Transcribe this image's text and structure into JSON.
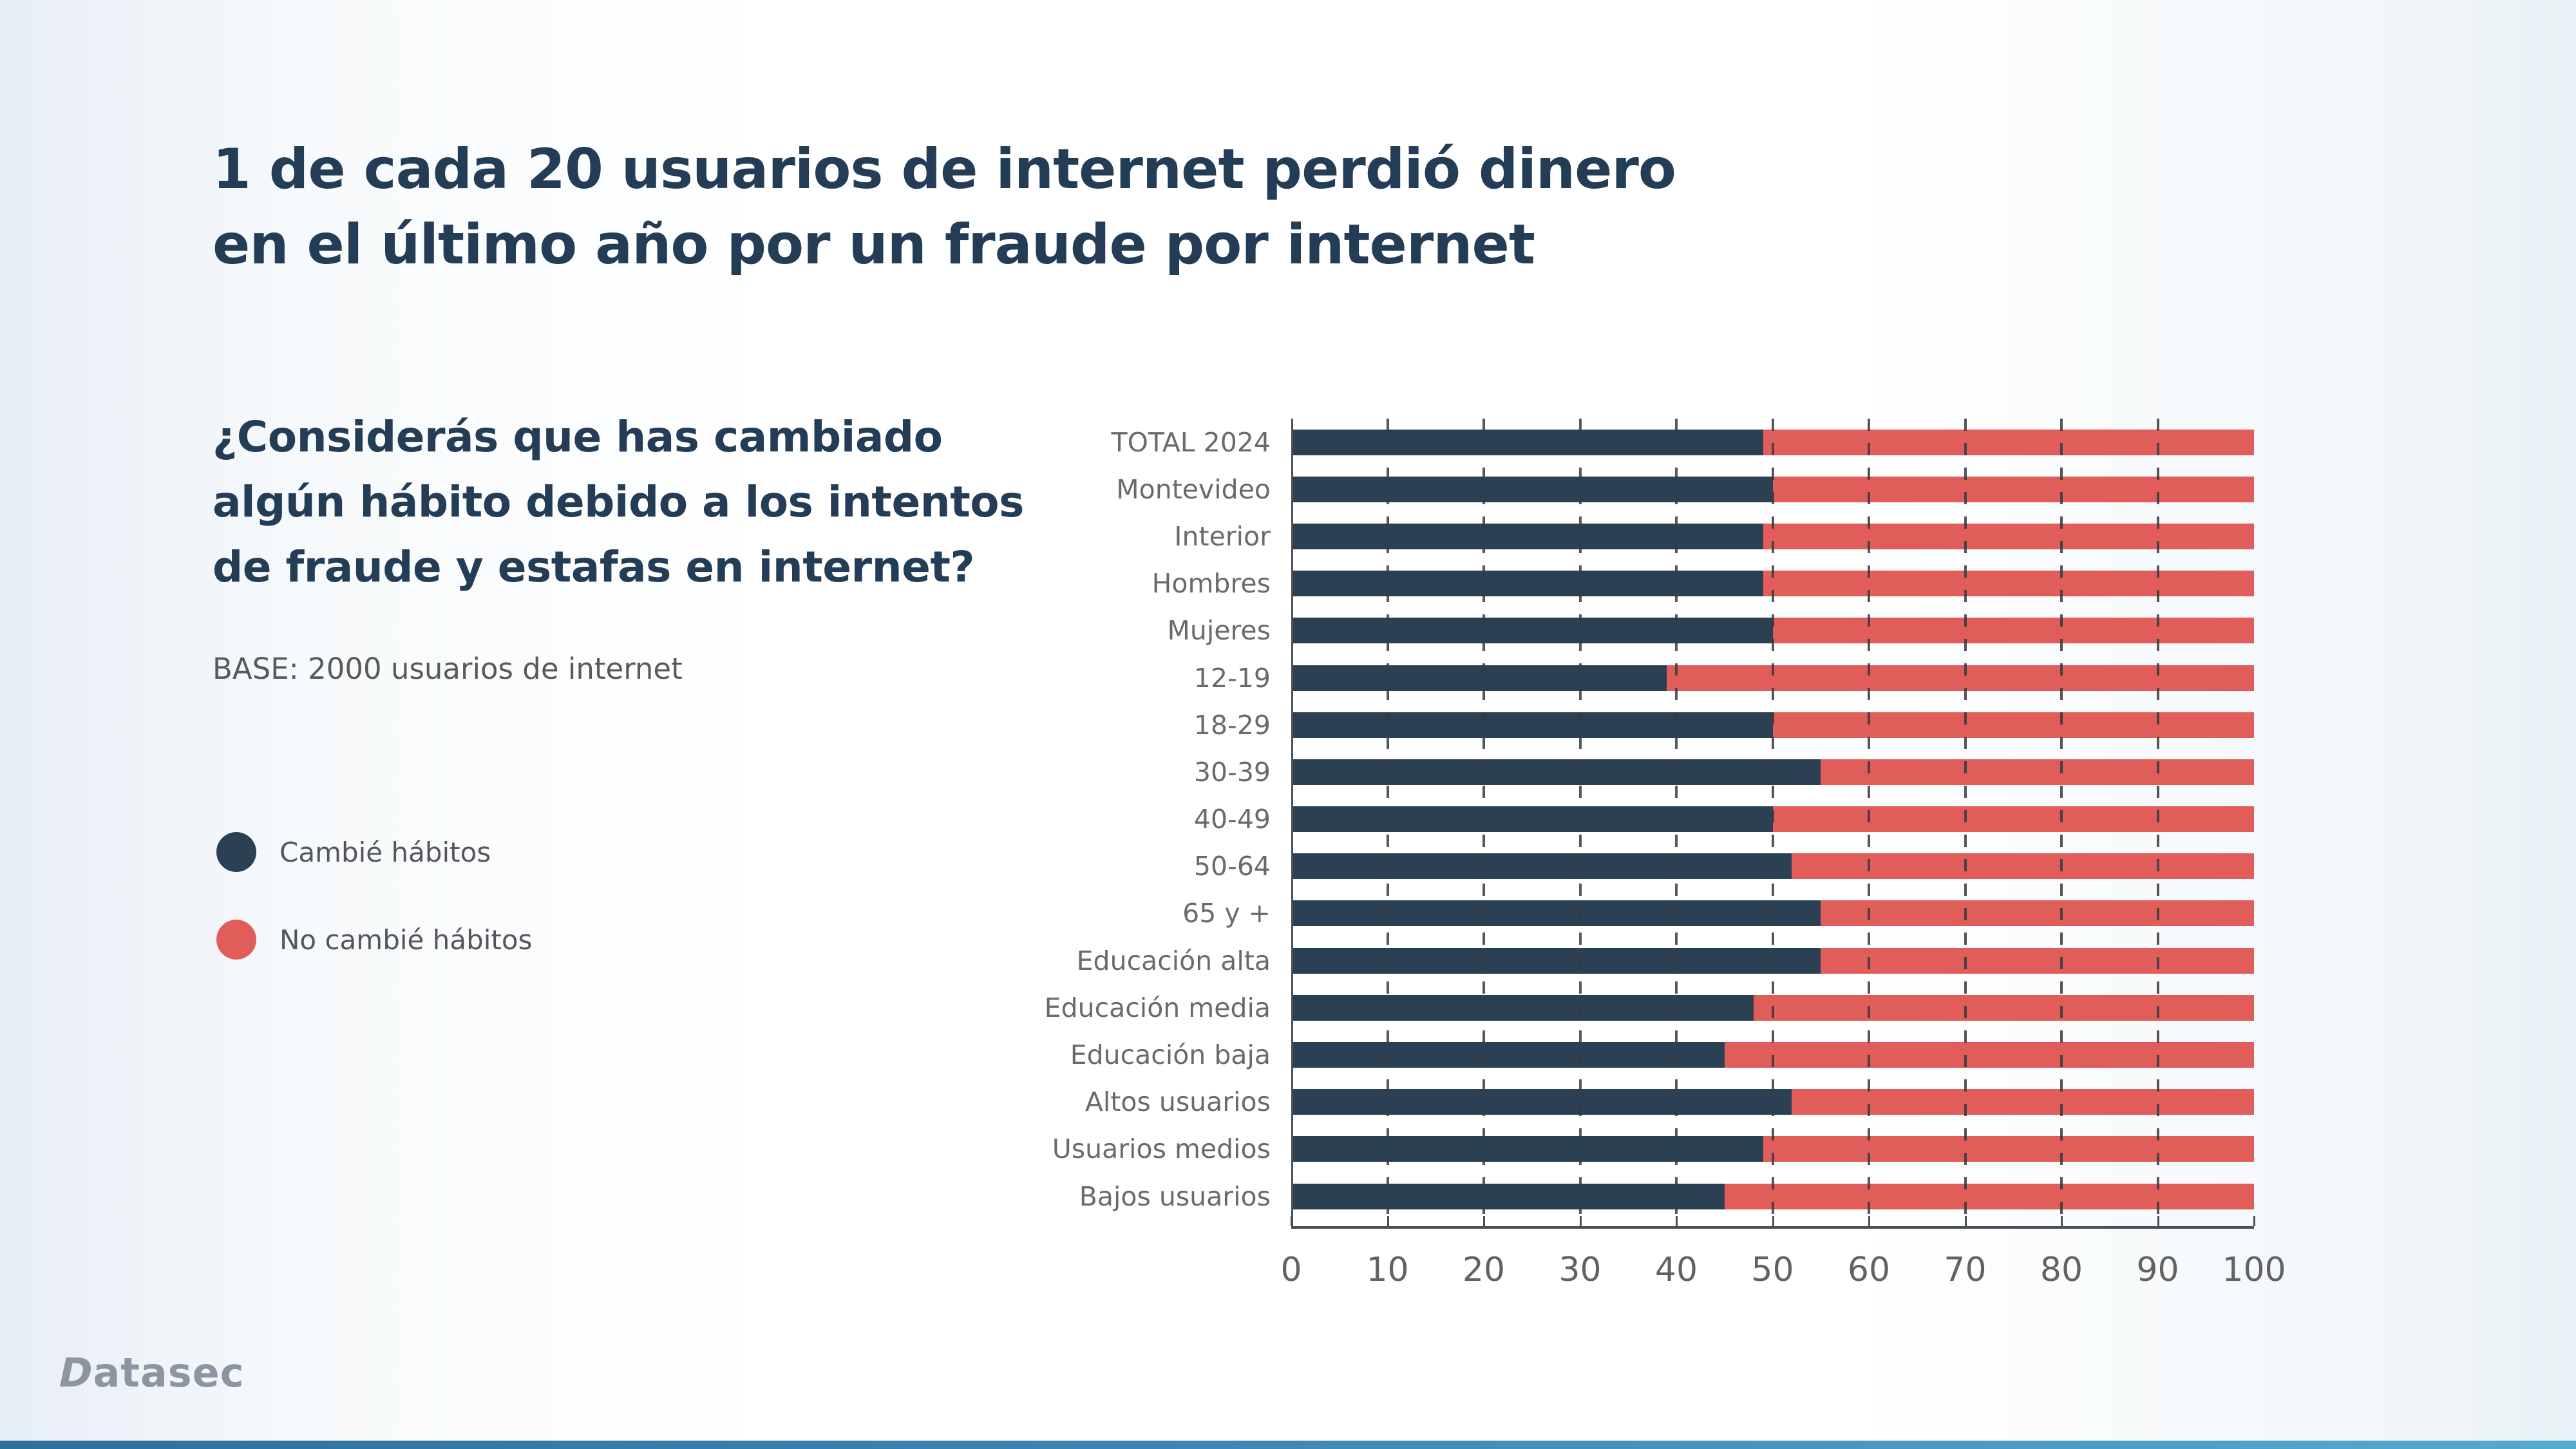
{
  "title": {
    "line1": "1 de cada 20 usuarios de internet perdió dinero",
    "line2": "en el último año por un fraude por internet"
  },
  "question": {
    "line1": "¿Considerás que has cambiado",
    "line2": "algún hábito debido a los intentos",
    "line3": "de fraude y estafas en internet?"
  },
  "base_note": "BASE: 2000 usuarios de internet",
  "legend": {
    "items": [
      {
        "label": "Cambié hábitos",
        "color": "#2c4054"
      },
      {
        "label": "No cambié hábitos",
        "color": "#e15d5a"
      }
    ]
  },
  "logo": {
    "first_letter": "D",
    "rest": "atasec"
  },
  "colors": {
    "navy": "#2c4054",
    "red": "#e15d5a",
    "navy_text": "#243d56",
    "gridline": "#3c3f43",
    "axis": "#4c4f53"
  },
  "chart_data": {
    "type": "bar",
    "orientation": "horizontal",
    "stacked": true,
    "unit": "%",
    "grid": true,
    "xlim": [
      0,
      100
    ],
    "xticks": [
      0,
      10,
      20,
      30,
      40,
      50,
      60,
      70,
      80,
      90,
      100
    ],
    "categories": [
      "TOTAL 2024",
      "Montevideo",
      "Interior",
      "Hombres",
      "Mujeres",
      "12-19",
      "18-29",
      "30-39",
      "40-49",
      "50-64",
      "65 y +",
      "Educación alta",
      "Educación media",
      "Educación baja",
      "Altos usuarios",
      "Usuarios medios",
      "Bajos usuarios"
    ],
    "series": [
      {
        "name": "Cambié hábitos",
        "color": "#2c4054",
        "values": [
          49,
          50,
          49,
          49,
          50,
          39,
          50,
          55,
          50,
          52,
          55,
          55,
          48,
          45,
          52,
          49,
          45
        ]
      },
      {
        "name": "No cambié hábitos",
        "color": "#e15d5a",
        "values": [
          51,
          50,
          51,
          51,
          50,
          61,
          50,
          45,
          50,
          48,
          45,
          45,
          52,
          55,
          48,
          51,
          55
        ]
      }
    ]
  }
}
